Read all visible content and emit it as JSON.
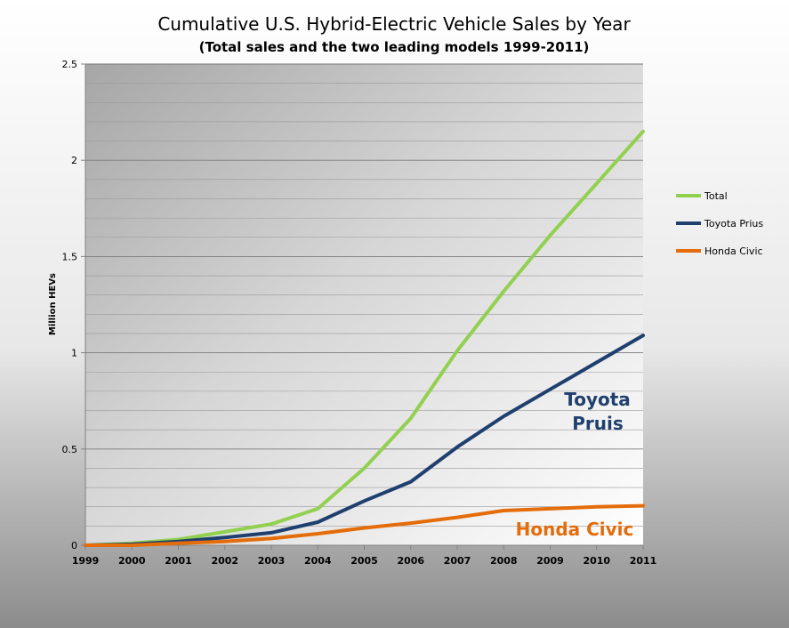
{
  "chart_data": {
    "type": "line",
    "title": "Cumulative U.S. Hybrid-Electric Vehicle Sales by Year",
    "subtitle": "(Total sales and the two leading models 1999-2011)",
    "xlabel": "",
    "ylabel": "Million HEVs",
    "ylim": [
      0,
      2.5
    ],
    "yticks": [
      "0",
      "0.5",
      "1",
      "1.5",
      "2",
      "2.5"
    ],
    "x": [
      "1999",
      "2000",
      "2001",
      "2002",
      "2003",
      "2004",
      "2005",
      "2006",
      "2007",
      "2008",
      "2009",
      "2010",
      "2011"
    ],
    "grid": true,
    "legend_position": "right",
    "series": [
      {
        "name": "Total",
        "color": "#92d050",
        "values": [
          0.0,
          0.01,
          0.03,
          0.07,
          0.11,
          0.19,
          0.4,
          0.66,
          1.01,
          1.32,
          1.61,
          1.88,
          2.15
        ]
      },
      {
        "name": "Toyota Prius",
        "color": "#1f3f6e",
        "values": [
          0.0,
          0.005,
          0.02,
          0.04,
          0.065,
          0.12,
          0.23,
          0.33,
          0.51,
          0.67,
          0.81,
          0.95,
          1.09
        ]
      },
      {
        "name": "Honda Civic",
        "color": "#e46c0a",
        "values": [
          0.0,
          0.0,
          0.01,
          0.02,
          0.035,
          0.06,
          0.09,
          0.115,
          0.145,
          0.18,
          0.19,
          0.2,
          0.205
        ]
      }
    ],
    "annotations": [
      {
        "lines": [
          "Toyota",
          "Pruis"
        ],
        "color": "#1f3f6e"
      },
      {
        "lines": [
          "Honda Civic"
        ],
        "color": "#e46c0a"
      }
    ]
  }
}
